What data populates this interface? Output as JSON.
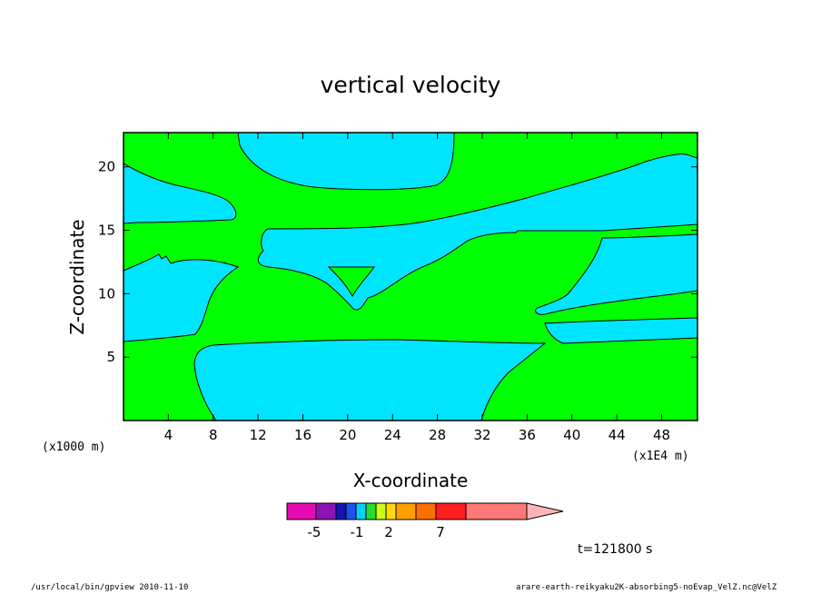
{
  "chart_data": {
    "type": "contour",
    "title": "vertical velocity",
    "xlabel": "X-coordinate",
    "ylabel": "Z-coordinate",
    "x_unit_left": "(x1000 m)",
    "x_unit_right": "(x1E4 m)",
    "xticks": [
      4,
      8,
      12,
      16,
      20,
      24,
      28,
      32,
      36,
      40,
      44,
      48
    ],
    "yticks": [
      5,
      10,
      15,
      20
    ],
    "xlim": [
      0,
      51.2
    ],
    "ylim": [
      0,
      22.7
    ],
    "colors": {
      "green": "#00ff00",
      "cyan": "#00e5ff"
    },
    "colorbar": {
      "colors": [
        "#e60ab4",
        "#8c14b4",
        "#1414b4",
        "#1e50f0",
        "#00d2ff",
        "#28dc28",
        "#c8ff14",
        "#ffdc00",
        "#ffa000",
        "#ff6e00",
        "#ff1e1e",
        "#ff7878",
        "#ffb4b4"
      ],
      "tick_labels": [
        "-5",
        "-1",
        "2",
        "7"
      ]
    },
    "time_label": "t=121800 s"
  },
  "footer": {
    "left": "/usr/local/bin/gpview  2010-11-10",
    "right": "arare-earth-reikyaku2K-absorbing5-noEvap_VelZ.nc@VelZ"
  }
}
